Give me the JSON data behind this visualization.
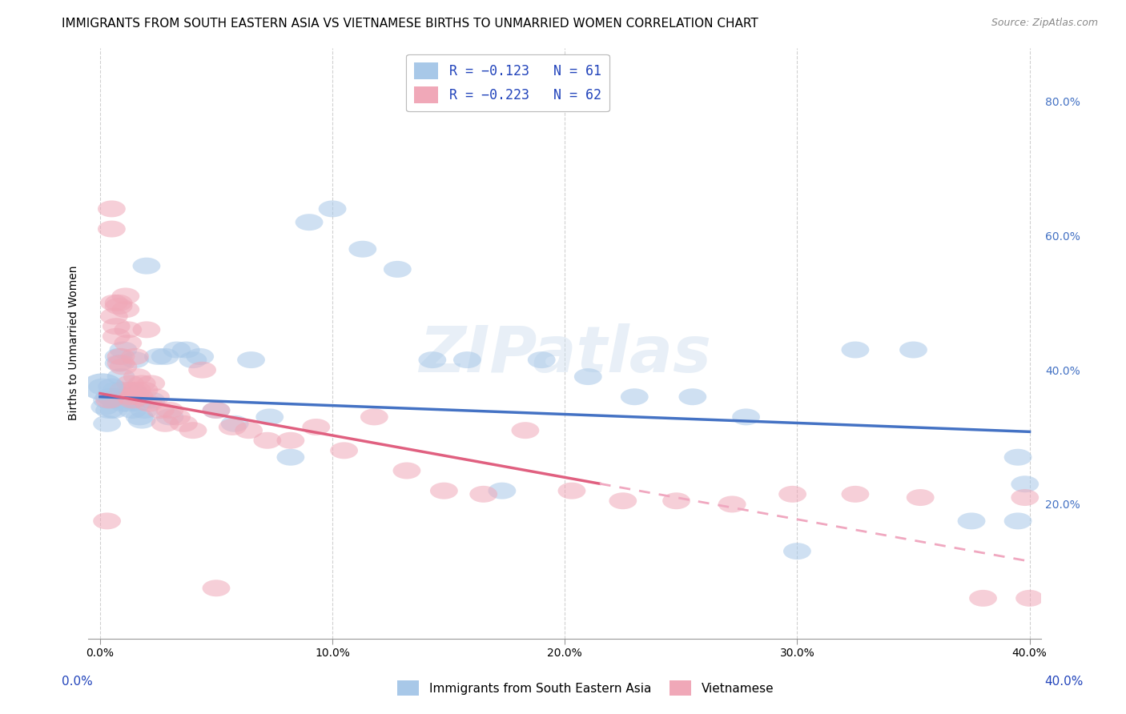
{
  "title": "IMMIGRANTS FROM SOUTH EASTERN ASIA VS VIETNAMESE BIRTHS TO UNMARRIED WOMEN CORRELATION CHART",
  "source": "Source: ZipAtlas.com",
  "ylabel": "Births to Unmarried Women",
  "y_tick_labels": [
    "20.0%",
    "40.0%",
    "60.0%",
    "80.0%"
  ],
  "y_tick_values": [
    0.2,
    0.4,
    0.6,
    0.8
  ],
  "x_tick_labels": [
    "0.0%",
    "10.0%",
    "20.0%",
    "30.0%",
    "40.0%"
  ],
  "x_tick_values": [
    0.0,
    0.1,
    0.2,
    0.3,
    0.4
  ],
  "xlim": [
    -0.005,
    0.405
  ],
  "ylim": [
    0.0,
    0.88
  ],
  "legend_entry1": "R = −0.123   N = 61",
  "legend_entry2": "R = −0.223   N = 62",
  "legend_label1": "Immigrants from South Eastern Asia",
  "legend_label2": "Vietnamese",
  "color_blue": "#A8C8E8",
  "color_pink": "#F0A8B8",
  "line_color_blue": "#4472C4",
  "line_color_pink": "#E06080",
  "line_color_pink_dash": "#F0A8C0",
  "watermark": "ZIPatlas",
  "blue_scatter_x": [
    0.001,
    0.002,
    0.003,
    0.003,
    0.004,
    0.004,
    0.005,
    0.005,
    0.006,
    0.006,
    0.007,
    0.007,
    0.008,
    0.008,
    0.009,
    0.009,
    0.01,
    0.01,
    0.011,
    0.012,
    0.013,
    0.014,
    0.015,
    0.015,
    0.016,
    0.017,
    0.018,
    0.019,
    0.02,
    0.022,
    0.025,
    0.028,
    0.03,
    0.033,
    0.037,
    0.04,
    0.043,
    0.05,
    0.058,
    0.065,
    0.073,
    0.082,
    0.09,
    0.1,
    0.113,
    0.128,
    0.143,
    0.158,
    0.173,
    0.19,
    0.21,
    0.23,
    0.255,
    0.278,
    0.3,
    0.325,
    0.35,
    0.375,
    0.395,
    0.395,
    0.398
  ],
  "blue_scatter_y": [
    0.375,
    0.345,
    0.355,
    0.32,
    0.34,
    0.36,
    0.375,
    0.36,
    0.355,
    0.34,
    0.37,
    0.36,
    0.42,
    0.41,
    0.39,
    0.36,
    0.43,
    0.35,
    0.355,
    0.35,
    0.37,
    0.34,
    0.415,
    0.365,
    0.35,
    0.33,
    0.325,
    0.34,
    0.555,
    0.355,
    0.42,
    0.42,
    0.33,
    0.43,
    0.43,
    0.415,
    0.42,
    0.34,
    0.32,
    0.415,
    0.33,
    0.27,
    0.62,
    0.64,
    0.58,
    0.55,
    0.415,
    0.415,
    0.22,
    0.415,
    0.39,
    0.36,
    0.36,
    0.33,
    0.13,
    0.43,
    0.43,
    0.175,
    0.175,
    0.27,
    0.23
  ],
  "pink_scatter_x": [
    0.003,
    0.004,
    0.005,
    0.005,
    0.006,
    0.006,
    0.007,
    0.007,
    0.008,
    0.008,
    0.009,
    0.009,
    0.01,
    0.01,
    0.011,
    0.011,
    0.012,
    0.012,
    0.013,
    0.013,
    0.014,
    0.014,
    0.015,
    0.016,
    0.016,
    0.017,
    0.018,
    0.019,
    0.02,
    0.021,
    0.022,
    0.024,
    0.026,
    0.028,
    0.03,
    0.033,
    0.036,
    0.04,
    0.044,
    0.05,
    0.057,
    0.064,
    0.072,
    0.082,
    0.093,
    0.105,
    0.118,
    0.132,
    0.148,
    0.165,
    0.183,
    0.203,
    0.225,
    0.248,
    0.272,
    0.298,
    0.325,
    0.353,
    0.38,
    0.398,
    0.05,
    0.4
  ],
  "pink_scatter_y": [
    0.175,
    0.355,
    0.64,
    0.61,
    0.5,
    0.48,
    0.465,
    0.45,
    0.5,
    0.495,
    0.42,
    0.41,
    0.405,
    0.37,
    0.51,
    0.49,
    0.46,
    0.44,
    0.38,
    0.36,
    0.37,
    0.355,
    0.42,
    0.39,
    0.37,
    0.36,
    0.38,
    0.37,
    0.46,
    0.35,
    0.38,
    0.36,
    0.34,
    0.32,
    0.34,
    0.33,
    0.32,
    0.31,
    0.4,
    0.34,
    0.315,
    0.31,
    0.295,
    0.295,
    0.315,
    0.28,
    0.33,
    0.25,
    0.22,
    0.215,
    0.31,
    0.22,
    0.205,
    0.205,
    0.2,
    0.215,
    0.215,
    0.21,
    0.06,
    0.21,
    0.075,
    0.06
  ],
  "blue_line_x0": 0.0,
  "blue_line_x1": 0.4,
  "blue_line_y0": 0.36,
  "blue_line_y1": 0.308,
  "pink_line_x0": 0.0,
  "pink_line_x1": 0.4,
  "pink_line_y0": 0.365,
  "pink_line_y1": 0.115,
  "pink_line_solid_end": 0.215,
  "background_color": "#FFFFFF",
  "grid_color": "#CCCCCC",
  "title_fontsize": 11,
  "axis_label_fontsize": 10,
  "tick_fontsize": 10,
  "scatter_size": 120,
  "scatter_alpha": 0.55,
  "right_ytick_color": "#4472C4",
  "xlabel_left_text": "0.0%",
  "xlabel_right_text": "40.0%"
}
